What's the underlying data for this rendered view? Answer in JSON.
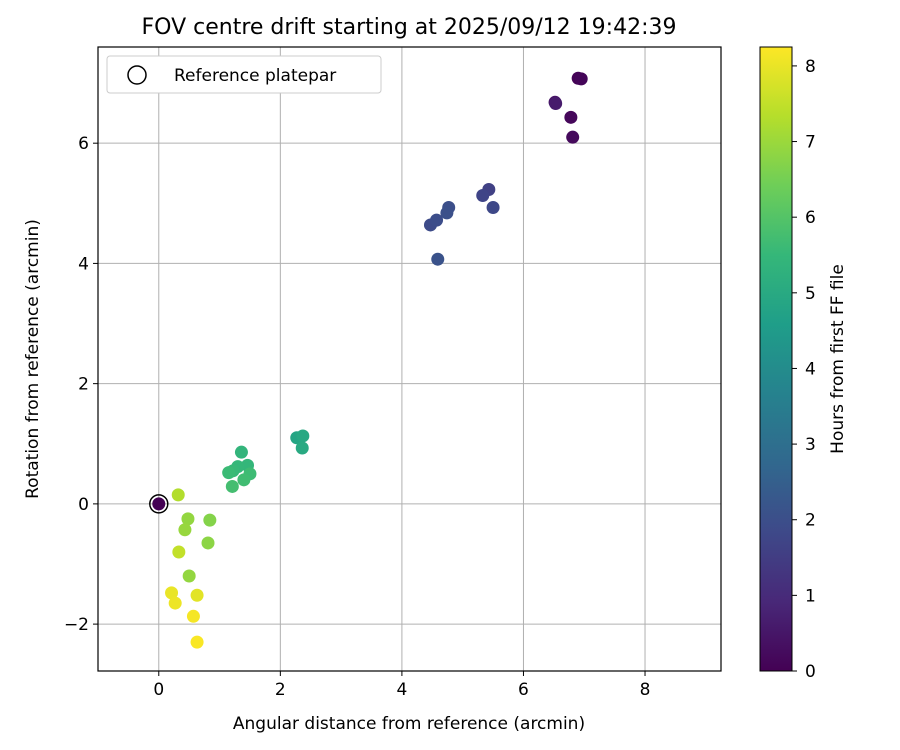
{
  "chart_data": {
    "type": "scatter",
    "title": "FOV centre drift starting at 2025/09/12 19:42:39",
    "xlabel": "Angular distance from reference (arcmin)",
    "ylabel": "Rotation from reference (arcmin)",
    "colorbar_label": "Hours from first FF file",
    "xlim": [
      -1.0,
      9.25
    ],
    "ylim": [
      -2.78,
      7.6
    ],
    "xticks": [
      0,
      2,
      4,
      6,
      8
    ],
    "yticks": [
      -2,
      0,
      2,
      4,
      6
    ],
    "colorbar_range": [
      0,
      8.25
    ],
    "colorbar_ticks": [
      0,
      1,
      2,
      3,
      4,
      5,
      6,
      7,
      8
    ],
    "colormap": "viridis",
    "grid": true,
    "legend": {
      "position": "top-left",
      "entries": [
        "Reference platepar"
      ]
    },
    "reference_point": {
      "x": 0,
      "y": 0,
      "hours": 0
    },
    "points": [
      {
        "x": 0.0,
        "y": 0.0,
        "hours": 0.0
      },
      {
        "x": 6.9,
        "y": 7.08,
        "hours": 0.05
      },
      {
        "x": 6.95,
        "y": 7.07,
        "hours": 0.1
      },
      {
        "x": 6.78,
        "y": 6.43,
        "hours": 0.15
      },
      {
        "x": 6.81,
        "y": 6.1,
        "hours": 0.2
      },
      {
        "x": 6.52,
        "y": 6.68,
        "hours": 0.45
      },
      {
        "x": 6.53,
        "y": 6.66,
        "hours": 0.6
      },
      {
        "x": 5.43,
        "y": 5.23,
        "hours": 1.6
      },
      {
        "x": 5.33,
        "y": 5.13,
        "hours": 1.7
      },
      {
        "x": 5.5,
        "y": 4.93,
        "hours": 1.8
      },
      {
        "x": 4.47,
        "y": 4.64,
        "hours": 1.9
      },
      {
        "x": 4.57,
        "y": 4.72,
        "hours": 1.95
      },
      {
        "x": 4.77,
        "y": 4.93,
        "hours": 2.0
      },
      {
        "x": 4.74,
        "y": 4.84,
        "hours": 2.05
      },
      {
        "x": 4.59,
        "y": 4.07,
        "hours": 2.1
      },
      {
        "x": 2.27,
        "y": 1.1,
        "hours": 4.85
      },
      {
        "x": 2.37,
        "y": 1.13,
        "hours": 4.95
      },
      {
        "x": 2.36,
        "y": 0.93,
        "hours": 5.0
      },
      {
        "x": 1.36,
        "y": 0.86,
        "hours": 5.4
      },
      {
        "x": 1.46,
        "y": 0.64,
        "hours": 5.45
      },
      {
        "x": 1.3,
        "y": 0.62,
        "hours": 5.5
      },
      {
        "x": 1.22,
        "y": 0.55,
        "hours": 5.55
      },
      {
        "x": 1.15,
        "y": 0.52,
        "hours": 5.6
      },
      {
        "x": 1.5,
        "y": 0.5,
        "hours": 5.65
      },
      {
        "x": 1.4,
        "y": 0.4,
        "hours": 5.7
      },
      {
        "x": 1.21,
        "y": 0.29,
        "hours": 5.75
      },
      {
        "x": 0.84,
        "y": -0.27,
        "hours": 6.7
      },
      {
        "x": 0.81,
        "y": -0.65,
        "hours": 6.8
      },
      {
        "x": 0.48,
        "y": -0.25,
        "hours": 6.9
      },
      {
        "x": 0.43,
        "y": -0.43,
        "hours": 6.95
      },
      {
        "x": 0.5,
        "y": -1.2,
        "hours": 6.9
      },
      {
        "x": 0.32,
        "y": 0.15,
        "hours": 7.3
      },
      {
        "x": 0.33,
        "y": -0.8,
        "hours": 7.5
      },
      {
        "x": 0.63,
        "y": -1.52,
        "hours": 7.9
      },
      {
        "x": 0.21,
        "y": -1.48,
        "hours": 8.0
      },
      {
        "x": 0.27,
        "y": -1.65,
        "hours": 8.05
      },
      {
        "x": 0.57,
        "y": -1.87,
        "hours": 8.15
      },
      {
        "x": 0.63,
        "y": -2.3,
        "hours": 8.2
      }
    ]
  }
}
